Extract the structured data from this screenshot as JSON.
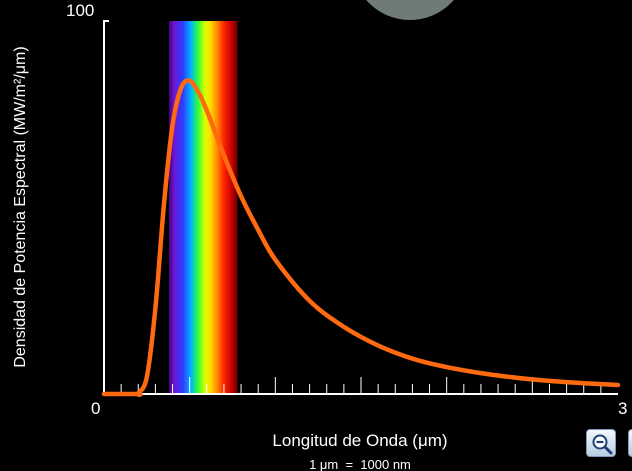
{
  "chart_data": {
    "type": "line",
    "title": "",
    "xlabel": "Longitud de Onda (μm)",
    "xlabel_note": "1 μm  =  1000 nm",
    "ylabel": "Densidad de Potencia Espectral (MW/m²/μm)",
    "xlim": [
      0,
      3
    ],
    "ylim": [
      0,
      100
    ],
    "x_tick_labels": [
      "0",
      "3"
    ],
    "y_tick_labels": [
      "100"
    ],
    "grid": false,
    "legend": "none",
    "visible_band": [
      0.38,
      0.78
    ],
    "series": [
      {
        "x": [
          0.2,
          0.25,
          0.3,
          0.35,
          0.4,
          0.45,
          0.5,
          0.55,
          0.6,
          0.7,
          0.8,
          0.9,
          1.0,
          1.2,
          1.4,
          1.6,
          1.8,
          2.0,
          2.2,
          2.4,
          2.6,
          2.8,
          3.0
        ],
        "y": [
          0.2,
          4.5,
          23,
          51,
          72,
          82,
          84,
          81,
          76,
          64,
          53,
          44,
          36,
          25,
          18,
          13,
          9.5,
          7.2,
          5.6,
          4.4,
          3.5,
          2.9,
          2.4
        ]
      }
    ]
  },
  "colors": {
    "curve": "#ff6a10",
    "axis": "#ffffff",
    "background": "#000000",
    "thermometer": "#6e7b78"
  },
  "controls": {
    "zoom_out_icon": "magnifier-minus-icon",
    "zoom_in_icon": "magnifier-plus-icon"
  }
}
